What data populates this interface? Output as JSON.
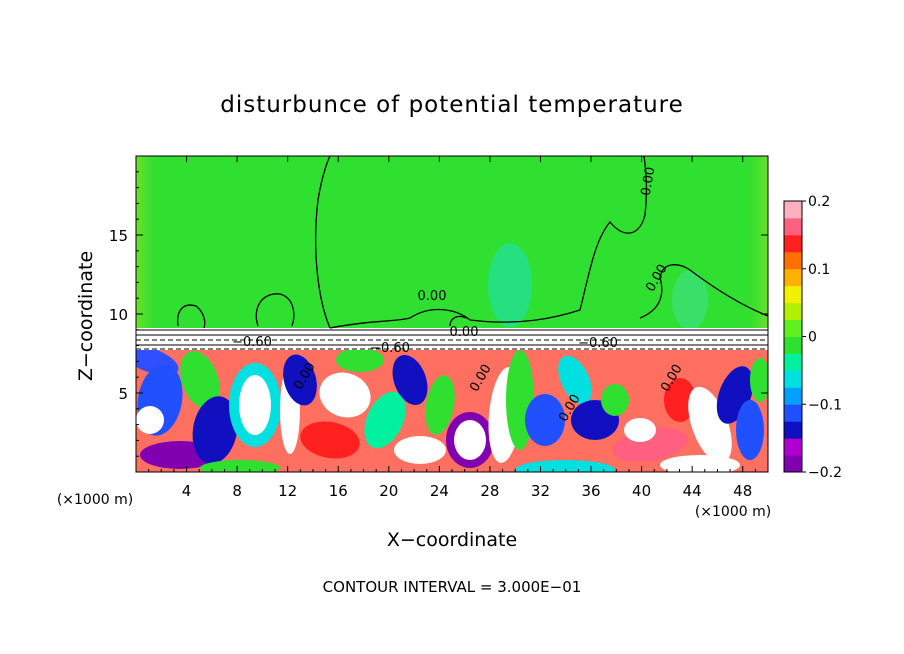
{
  "chart_data": {
    "type": "heatmap",
    "title": "disturbunce of potential temperature",
    "xlabel": "X−coordinate",
    "ylabel": "Z−coordinate",
    "x_unit_left": "(×1000 m)",
    "x_unit_right": "(×1000 m)",
    "footer": "CONTOUR INTERVAL = 3.000E−01",
    "xlim": [
      0,
      50
    ],
    "ylim": [
      0,
      20
    ],
    "x_ticks": [
      "4",
      "8",
      "12",
      "16",
      "20",
      "24",
      "28",
      "32",
      "36",
      "40",
      "44",
      "48"
    ],
    "x_tick_values": [
      4,
      8,
      12,
      16,
      20,
      24,
      28,
      32,
      36,
      40,
      44,
      48
    ],
    "y_ticks": [
      "5",
      "10",
      "15"
    ],
    "y_tick_values": [
      5,
      10,
      15
    ],
    "colorbar": {
      "range": [
        -0.2,
        0.2
      ],
      "tick_labels": [
        "0.2",
        "0.1",
        "0",
        "−0.1",
        "−0.2"
      ],
      "tick_values": [
        0.2,
        0.1,
        0,
        -0.1,
        -0.2
      ],
      "colors": [
        "#8000b0",
        "#b000d0",
        "#1010c0",
        "#2050ff",
        "#00a0ff",
        "#00e0e0",
        "#00f0a0",
        "#30e030",
        "#60f020",
        "#b0f000",
        "#f0f000",
        "#ffb000",
        "#ff7000",
        "#ff2020",
        "#ff6080",
        "#ffb0c0"
      ]
    },
    "contour_labels": [
      "0.00",
      "0.00",
      "0.00",
      "0.00",
      "−0.60",
      "−0.60",
      "−0.60",
      "0.00",
      "0.00",
      "0.00",
      "0.00"
    ],
    "upper_layer_value": 0.0,
    "inversion_height": 8.5
  }
}
